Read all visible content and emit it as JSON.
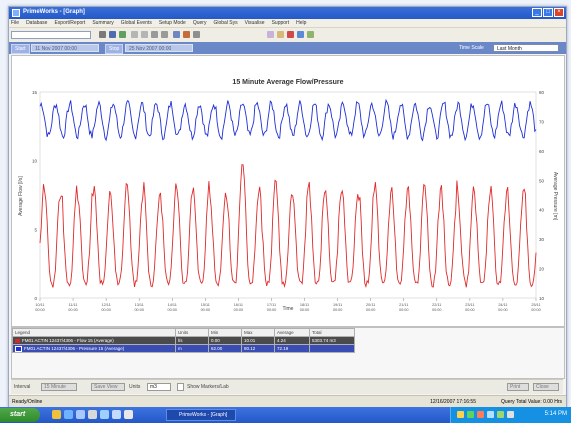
{
  "window": {
    "title": "PrimeWorks - [Graph]"
  },
  "menu": [
    "File",
    "Database",
    "Export/Report",
    "Summary",
    "Global Events",
    "Setup Mode",
    "Query",
    "Global Sys",
    "Visualise",
    "Support",
    "Help"
  ],
  "range": {
    "start_label": "Start",
    "start_value": "11 Nov 2007 00:00",
    "stop_label": "Stop",
    "stop_value": "25 Nov 2007 00:00",
    "time_scale_label": "Time Scale",
    "time_scale_value": "Last Month"
  },
  "chart": {
    "title": "15 Minute Average Flow/Pressure",
    "xlabel": "Time",
    "ylabel_left": "Average Flow [l/s]",
    "ylabel_right": "Average Pressure [m]"
  },
  "chart_data": {
    "type": "line",
    "title": "15 Minute Average Flow/Pressure",
    "xlabel": "Time",
    "x": [
      "10/11 00:00",
      "11/11 00:00",
      "12/11 00:00",
      "13/11 00:00",
      "14/11 00:00",
      "15/11 00:00",
      "16/11 00:00",
      "17/11 00:00",
      "18/11 00:00",
      "19/11 00:00",
      "20/11 00:00",
      "21/11 00:00",
      "22/11 00:00",
      "23/11 00:00",
      "24/11 00:00",
      "25/11 00:00"
    ],
    "y_left": {
      "label": "Average Flow [l/s]",
      "ticks": [
        0,
        5,
        10,
        15
      ]
    },
    "y_right": {
      "label": "Average Pressure [m]",
      "ticks": [
        10,
        20,
        30,
        40,
        50,
        60,
        70,
        80
      ]
    },
    "series": [
      {
        "axis": "right",
        "color": "#1f2fd6",
        "daily_low": 65,
        "daily_high": 76,
        "cycles": 15,
        "amplitude_unit": "m"
      },
      {
        "axis": "left",
        "color": "#e02a2a",
        "daily_low": 1.0,
        "daily_high": 8.0,
        "peak": 10.0,
        "cycles": 15,
        "amplitude_unit": "l/s"
      }
    ]
  },
  "legend": {
    "headers": [
      "Legend",
      "Units",
      "Min",
      "Max",
      "Average",
      "Total"
    ],
    "rows": [
      {
        "name": "FM01 ACTIN 12437/4306 - Flow 15 (Average)",
        "units": "l/s",
        "min": "0.00",
        "max": "10.01",
        "average": "4.24",
        "total": "5303.74 m3",
        "color": "#d22a2a"
      },
      {
        "name": "FM01 ACTIN 12437/4306 - Pressure 15 (Average)",
        "units": "m",
        "min": "62.00",
        "max": "80.12",
        "average": "72.19",
        "total": "",
        "color": "#1f2fd6"
      }
    ]
  },
  "bottom": {
    "interval_label": "Interval",
    "interval_value": "15 Minute",
    "save_label": "Save View",
    "units_label": "Units",
    "units_value": "m3",
    "show_markers_label": "Show Markers/Lab",
    "print_label": "Print",
    "close_label": "Close"
  },
  "status": {
    "left": "Ready/Online",
    "mid": "12/16/2007 17:16:55",
    "right": "Query Total Value: 0.00 Hrs"
  },
  "taskbar": {
    "start_label": "start",
    "task_label": "PrimeWorks - [Graph]",
    "clock": "5:14 PM"
  }
}
